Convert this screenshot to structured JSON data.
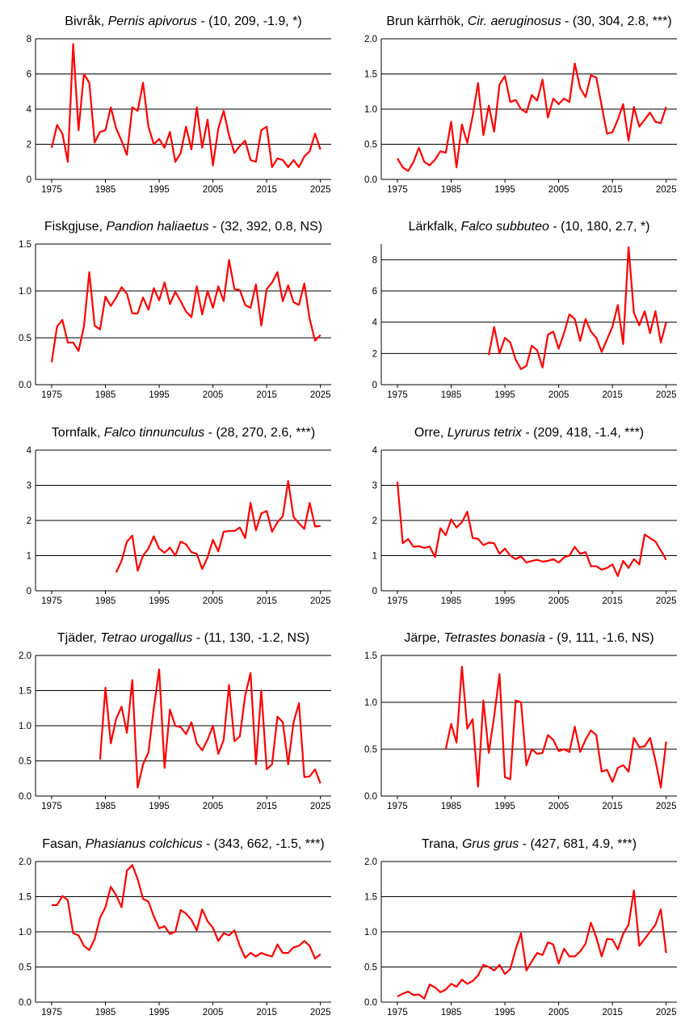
{
  "line_color": "#ff0000",
  "chart_data": [
    {
      "type": "line",
      "title_common": "Bivråk, ",
      "title_latin": "Pernis apivorus",
      "title_stats": " - (10, 209, -1.9, *)",
      "xlim": [
        1972,
        2027
      ],
      "ylim": [
        0,
        8
      ],
      "yticks": [
        "0",
        "2",
        "4",
        "6",
        "8"
      ],
      "xticks": [
        "1975",
        "1985",
        "1995",
        "2005",
        "2015",
        "2025"
      ],
      "x_start": 1975,
      "values": [
        1.8,
        3.1,
        2.6,
        1.0,
        7.7,
        2.8,
        6.0,
        5.5,
        2.1,
        2.7,
        2.8,
        4.1,
        2.9,
        2.2,
        1.4,
        4.1,
        3.9,
        5.5,
        3.0,
        2.0,
        2.3,
        1.8,
        2.7,
        1.0,
        1.5,
        3.0,
        1.7,
        4.1,
        1.8,
        3.4,
        0.8,
        2.9,
        3.9,
        2.5,
        1.5,
        1.9,
        2.2,
        1.1,
        1.0,
        2.8,
        3.0,
        0.7,
        1.2,
        1.1,
        0.7,
        1.1,
        0.7,
        1.3,
        1.6,
        2.6,
        1.7
      ]
    },
    {
      "type": "line",
      "title_common": "Brun kärrhök, ",
      "title_latin": "Cir. aeruginosus",
      "title_stats": " - (30, 304, 2.8, ***)",
      "xlim": [
        1972,
        2027
      ],
      "ylim": [
        0,
        2
      ],
      "yticks": [
        "0.0",
        "0.5",
        "1.0",
        "1.5",
        "2.0"
      ],
      "xticks": [
        "1975",
        "1985",
        "1995",
        "2005",
        "2015",
        "2025"
      ],
      "x_start": 1975,
      "values": [
        0.3,
        0.17,
        0.12,
        0.25,
        0.45,
        0.25,
        0.2,
        0.28,
        0.4,
        0.38,
        0.82,
        0.17,
        0.78,
        0.52,
        0.9,
        1.37,
        0.63,
        1.05,
        0.68,
        1.35,
        1.47,
        1.1,
        1.13,
        1.0,
        0.95,
        1.2,
        1.12,
        1.42,
        0.88,
        1.15,
        1.07,
        1.15,
        1.1,
        1.65,
        1.3,
        1.17,
        1.48,
        1.45,
        1.05,
        0.65,
        0.67,
        0.85,
        1.07,
        0.55,
        1.03,
        0.75,
        0.85,
        0.95,
        0.82,
        0.8,
        1.03
      ]
    },
    {
      "type": "line",
      "title_common": "Fiskgjuse, ",
      "title_latin": "Pandion haliaetus",
      "title_stats": " - (32, 392, 0.8, NS)",
      "xlim": [
        1972,
        2027
      ],
      "ylim": [
        0,
        1.5
      ],
      "yticks": [
        "0.0",
        "0.5",
        "1.0",
        "1.5"
      ],
      "xticks": [
        "1975",
        "1985",
        "1995",
        "2005",
        "2015",
        "2025"
      ],
      "x_start": 1975,
      "values": [
        0.24,
        0.62,
        0.69,
        0.45,
        0.45,
        0.36,
        0.62,
        1.2,
        0.63,
        0.59,
        0.94,
        0.84,
        0.93,
        1.04,
        0.97,
        0.76,
        0.76,
        0.93,
        0.8,
        1.03,
        0.9,
        1.09,
        0.86,
        0.99,
        0.89,
        0.78,
        0.72,
        1.05,
        0.75,
        1.0,
        0.82,
        1.05,
        0.89,
        1.33,
        1.02,
        1.01,
        0.85,
        0.82,
        1.07,
        0.63,
        1.02,
        1.09,
        1.2,
        0.89,
        1.06,
        0.88,
        0.85,
        1.08,
        0.7,
        0.47,
        0.53
      ]
    },
    {
      "type": "line",
      "title_common": "Lärkfalk, ",
      "title_latin": "Falco subbuteo",
      "title_stats": " - (10, 180, 2.7, *)",
      "xlim": [
        1972,
        2027
      ],
      "ylim": [
        0,
        9
      ],
      "yticks": [
        "0",
        "2",
        "4",
        "6",
        "8"
      ],
      "xticks": [
        "1975",
        "1985",
        "1995",
        "2005",
        "2015",
        "2025"
      ],
      "x_start": 1992,
      "values": [
        1.9,
        3.7,
        2.0,
        3.0,
        2.7,
        1.6,
        1.0,
        1.2,
        2.5,
        2.2,
        1.1,
        3.2,
        3.4,
        2.3,
        3.3,
        4.5,
        4.2,
        2.8,
        4.2,
        3.4,
        3.0,
        2.1,
        2.9,
        3.7,
        5.1,
        2.6,
        8.8,
        4.6,
        3.8,
        4.7,
        3.3,
        4.7,
        2.7,
        4.0
      ]
    },
    {
      "type": "line",
      "title_common": "Tornfalk, ",
      "title_latin": "Falco tinnunculus",
      "title_stats": " - (28, 270, 2.6, ***)",
      "xlim": [
        1972,
        2027
      ],
      "ylim": [
        0,
        4
      ],
      "yticks": [
        "0",
        "1",
        "2",
        "3",
        "4"
      ],
      "xticks": [
        "1975",
        "1985",
        "1995",
        "2005",
        "2015",
        "2025"
      ],
      "x_start": 1987,
      "values": [
        0.52,
        0.85,
        1.4,
        1.57,
        0.57,
        1.0,
        1.2,
        1.55,
        1.2,
        1.08,
        1.23,
        1.0,
        1.4,
        1.32,
        1.1,
        1.05,
        0.62,
        0.95,
        1.45,
        1.12,
        1.68,
        1.7,
        1.7,
        1.8,
        1.5,
        2.5,
        1.72,
        2.2,
        2.27,
        1.68,
        1.95,
        2.12,
        3.12,
        2.1,
        1.92,
        1.76,
        2.5,
        1.83,
        1.84
      ]
    },
    {
      "type": "line",
      "title_common": "Orre, ",
      "title_latin": "Lyrurus tetrix",
      "title_stats": " - (209, 418, -1.4, ***)",
      "xlim": [
        1972,
        2027
      ],
      "ylim": [
        0,
        4
      ],
      "yticks": [
        "0",
        "1",
        "2",
        "3",
        "4"
      ],
      "xticks": [
        "1975",
        "1985",
        "1995",
        "2005",
        "2015",
        "2025"
      ],
      "x_start": 1975,
      "values": [
        3.1,
        1.35,
        1.47,
        1.25,
        1.27,
        1.22,
        1.26,
        0.96,
        1.78,
        1.58,
        2.03,
        1.8,
        1.95,
        2.25,
        1.5,
        1.48,
        1.3,
        1.37,
        1.35,
        1.05,
        1.2,
        1.0,
        0.9,
        0.98,
        0.8,
        0.85,
        0.88,
        0.83,
        0.85,
        0.9,
        0.8,
        0.95,
        1.0,
        1.25,
        1.05,
        1.1,
        0.7,
        0.7,
        0.6,
        0.65,
        0.75,
        0.42,
        0.85,
        0.65,
        0.9,
        0.75,
        1.6,
        1.5,
        1.4,
        1.15,
        0.88
      ]
    },
    {
      "type": "line",
      "title_common": "Tjäder, ",
      "title_latin": "Tetrao urogallus",
      "title_stats": " - (11, 130, -1.2, NS)",
      "xlim": [
        1972,
        2027
      ],
      "ylim": [
        0,
        2
      ],
      "yticks": [
        "0.0",
        "0.5",
        "1.0",
        "1.5",
        "2.0"
      ],
      "xticks": [
        "1975",
        "1985",
        "1995",
        "2005",
        "2015",
        "2025"
      ],
      "x_start": 1984,
      "values": [
        0.52,
        1.54,
        0.75,
        1.1,
        1.27,
        0.9,
        1.65,
        0.12,
        0.45,
        0.62,
        1.25,
        1.8,
        0.4,
        1.23,
        1.0,
        0.98,
        0.88,
        1.05,
        0.75,
        0.65,
        0.8,
        1.0,
        0.6,
        0.8,
        1.58,
        0.78,
        0.85,
        1.43,
        1.75,
        0.45,
        1.5,
        0.38,
        0.45,
        1.13,
        1.05,
        0.45,
        1.05,
        1.32,
        0.27,
        0.28,
        0.38,
        0.18
      ]
    },
    {
      "type": "line",
      "title_common": "Järpe, ",
      "title_latin": "Tetrastes bonasia",
      "title_stats": " - (9, 111, -1.6, NS)",
      "xlim": [
        1972,
        2027
      ],
      "ylim": [
        0,
        1.5
      ],
      "yticks": [
        "0.0",
        "0.5",
        "1.0",
        "1.5"
      ],
      "xticks": [
        "1975",
        "1985",
        "1995",
        "2005",
        "2015",
        "2025"
      ],
      "x_start": 1984,
      "values": [
        0.5,
        0.77,
        0.57,
        1.38,
        0.72,
        0.82,
        0.1,
        1.02,
        0.46,
        0.85,
        1.3,
        0.2,
        0.18,
        1.02,
        1.0,
        0.33,
        0.5,
        0.45,
        0.46,
        0.65,
        0.6,
        0.48,
        0.5,
        0.47,
        0.74,
        0.47,
        0.6,
        0.7,
        0.65,
        0.26,
        0.28,
        0.15,
        0.3,
        0.33,
        0.26,
        0.62,
        0.52,
        0.53,
        0.62,
        0.38,
        0.09,
        0.58
      ]
    },
    {
      "type": "line",
      "title_common": "Fasan, ",
      "title_latin": "Phasianus colchicus",
      "title_stats": " - (343, 662, -1.5, ***)",
      "xlim": [
        1972,
        2027
      ],
      "ylim": [
        0,
        2
      ],
      "yticks": [
        "0.0",
        "0.5",
        "1.0",
        "1.5",
        "2.0"
      ],
      "xticks": [
        "1975",
        "1985",
        "1995",
        "2005",
        "2015",
        "2025"
      ],
      "x_start": 1975,
      "values": [
        1.38,
        1.38,
        1.51,
        1.45,
        0.98,
        0.95,
        0.8,
        0.74,
        0.9,
        1.2,
        1.35,
        1.64,
        1.52,
        1.35,
        1.87,
        1.95,
        1.75,
        1.47,
        1.43,
        1.22,
        1.05,
        1.08,
        0.97,
        1.0,
        1.31,
        1.26,
        1.17,
        1.02,
        1.32,
        1.15,
        1.06,
        0.87,
        0.98,
        0.95,
        1.02,
        0.8,
        0.63,
        0.7,
        0.65,
        0.7,
        0.67,
        0.65,
        0.82,
        0.7,
        0.7,
        0.78,
        0.8,
        0.87,
        0.8,
        0.62,
        0.68
      ]
    },
    {
      "type": "line",
      "title_common": "Trana, ",
      "title_latin": "Grus grus",
      "title_stats": " - (427, 681, 4.9, ***)",
      "xlim": [
        1972,
        2027
      ],
      "ylim": [
        0,
        2
      ],
      "yticks": [
        "0.0",
        "0.5",
        "1.0",
        "1.5",
        "2.0"
      ],
      "xticks": [
        "1975",
        "1985",
        "1995",
        "2005",
        "2015",
        "2025"
      ],
      "x_start": 1975,
      "values": [
        0.08,
        0.12,
        0.15,
        0.1,
        0.11,
        0.05,
        0.25,
        0.21,
        0.14,
        0.18,
        0.26,
        0.22,
        0.32,
        0.26,
        0.3,
        0.38,
        0.53,
        0.5,
        0.45,
        0.53,
        0.4,
        0.47,
        0.75,
        0.98,
        0.45,
        0.58,
        0.7,
        0.67,
        0.85,
        0.82,
        0.55,
        0.76,
        0.65,
        0.65,
        0.72,
        0.83,
        1.13,
        0.92,
        0.65,
        0.9,
        0.89,
        0.75,
        0.97,
        1.1,
        1.59,
        0.8,
        0.9,
        1.0,
        1.1,
        1.32,
        0.7
      ]
    }
  ]
}
